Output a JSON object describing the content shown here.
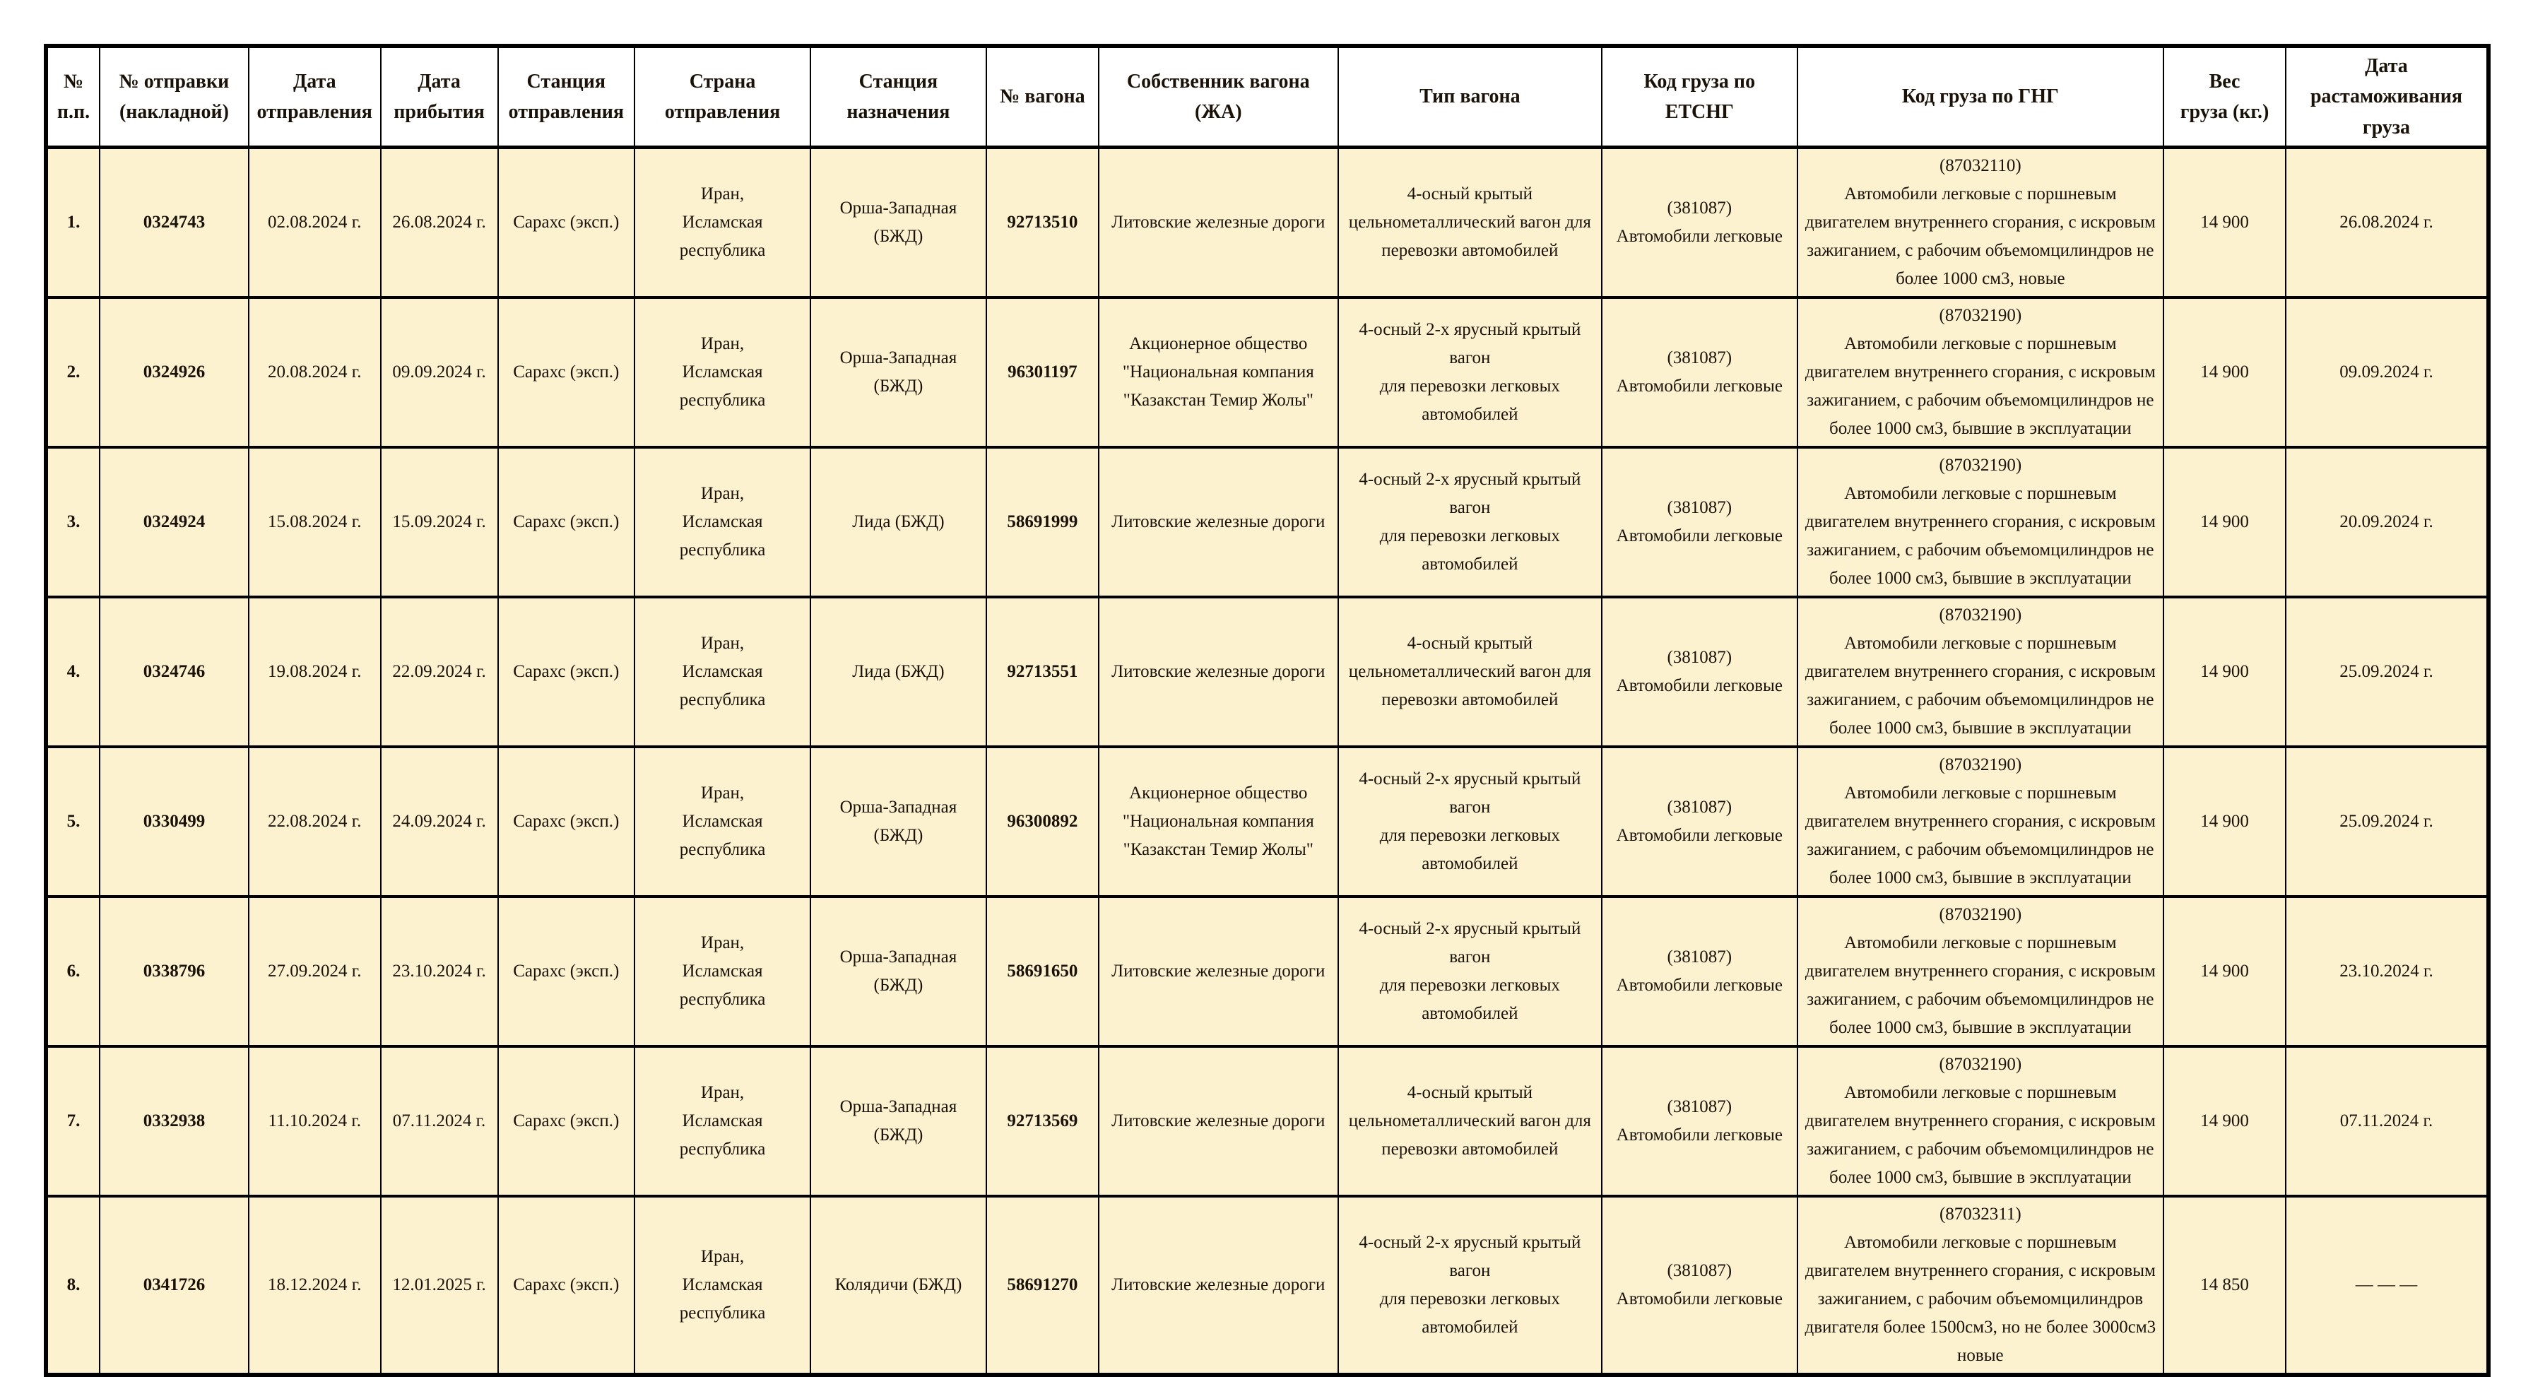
{
  "colors": {
    "cell_bg": "#FCF2CF",
    "header_bg": "#FFFFFF",
    "border": "#000000",
    "text": "#1A1208",
    "page_bg": "#FFFFFF"
  },
  "table": {
    "headers": [
      "№\nп.п.",
      "№ отправки\n(накладной)",
      "Дата\nотправления",
      "Дата\nприбытия",
      "Станция\nотправления",
      "Страна\nотправления",
      "Станция\nназначения",
      "№ вагона",
      "Собственник вагона\n(ЖА)",
      "Тип вагона",
      "Код груза по\nЕТСНГ",
      "Код груза по ГНГ",
      "Вес\nгруза (кг.)",
      "Дата\nрастаможивания\nгруза"
    ],
    "rows": [
      {
        "cells": [
          "1.",
          "0324743",
          "02.08.2024 г.",
          "26.08.2024 г.",
          "Сарахс (эксп.)",
          "Иран,\nИсламская\nреспублика",
          "Орша-Западная (БЖД)",
          "92713510",
          "Литовские железные дороги",
          "4-осный крытый\nцельнометаллический вагон для\nперевозки автомобилей",
          "(381087)\nАвтомобили легковые",
          "(87032110)\nАвтомобили легковые с поршневым двигателем внутреннего сгорания, с искровым зажиганием, с рабочим объемомцилиндров не более 1000 см3, новые",
          "14 900",
          "26.08.2024 г."
        ]
      },
      {
        "cells": [
          "2.",
          "0324926",
          "20.08.2024 г.",
          "09.09.2024 г.",
          "Сарахс (эксп.)",
          "Иран,\nИсламская\nреспублика",
          "Орша-Западная (БЖД)",
          "96301197",
          "Акционерное общество\n\"Национальная компания\n\"Казакстан Темир Жолы\"",
          "4-осный 2-х ярусный крытый вагон\nдля перевозки легковых\nавтомобилей",
          "(381087)\nАвтомобили легковые",
          "(87032190)\nАвтомобили легковые с поршневым двигателем внутреннего сгорания, с искровым зажиганием, с рабочим объемомцилиндров не более 1000 см3, бывшие в эксплуатации",
          "14 900",
          "09.09.2024 г."
        ]
      },
      {
        "cells": [
          "3.",
          "0324924",
          "15.08.2024 г.",
          "15.09.2024 г.",
          "Сарахс (эксп.)",
          "Иран,\nИсламская\nреспублика",
          "Лида (БЖД)",
          "58691999",
          "Литовские железные дороги",
          "4-осный 2-х ярусный крытый вагон\nдля перевозки легковых\nавтомобилей",
          "(381087)\nАвтомобили легковые",
          "(87032190)\nАвтомобили легковые с поршневым двигателем внутреннего сгорания, с искровым зажиганием, с рабочим объемомцилиндров не более 1000 см3, бывшие в эксплуатации",
          "14 900",
          "20.09.2024 г."
        ]
      },
      {
        "cells": [
          "4.",
          "0324746",
          "19.08.2024 г.",
          "22.09.2024 г.",
          "Сарахс (эксп.)",
          "Иран,\nИсламская\nреспублика",
          "Лида (БЖД)",
          "92713551",
          "Литовские железные дороги",
          "4-осный крытый\nцельнометаллический вагон для\nперевозки автомобилей",
          "(381087)\nАвтомобили легковые",
          "(87032190)\nАвтомобили легковые с поршневым двигателем внутреннего сгорания, с искровым зажиганием, с рабочим объемомцилиндров не более 1000 см3, бывшие в эксплуатации",
          "14 900",
          "25.09.2024 г."
        ]
      },
      {
        "cells": [
          "5.",
          "0330499",
          "22.08.2024 г.",
          "24.09.2024 г.",
          "Сарахс (эксп.)",
          "Иран,\nИсламская\nреспублика",
          "Орша-Западная (БЖД)",
          "96300892",
          "Акционерное общество\n\"Национальная компания\n\"Казакстан Темир Жолы\"",
          "4-осный 2-х ярусный крытый вагон\nдля перевозки легковых\nавтомобилей",
          "(381087)\nАвтомобили легковые",
          "(87032190)\nАвтомобили легковые с поршневым двигателем внутреннего сгорания, с искровым зажиганием, с рабочим объемомцилиндров не более 1000 см3, бывшие в эксплуатации",
          "14 900",
          "25.09.2024 г."
        ]
      },
      {
        "cells": [
          "6.",
          "0338796",
          "27.09.2024 г.",
          "23.10.2024 г.",
          "Сарахс (эксп.)",
          "Иран,\nИсламская\nреспублика",
          "Орша-Западная (БЖД)",
          "58691650",
          "Литовские железные дороги",
          "4-осный 2-х ярусный крытый вагон\nдля перевозки легковых\nавтомобилей",
          "(381087)\nАвтомобили легковые",
          "(87032190)\nАвтомобили легковые с поршневым двигателем внутреннего сгорания, с искровым зажиганием, с рабочим объемомцилиндров не более 1000 см3, бывшие в эксплуатации",
          "14 900",
          "23.10.2024 г."
        ]
      },
      {
        "cells": [
          "7.",
          "0332938",
          "11.10.2024 г.",
          "07.11.2024 г.",
          "Сарахс (эксп.)",
          "Иран,\nИсламская\nреспублика",
          "Орша-Западная (БЖД)",
          "92713569",
          "Литовские железные дороги",
          "4-осный крытый\nцельнометаллический вагон для\nперевозки автомобилей",
          "(381087)\nАвтомобили легковые",
          "(87032190)\nАвтомобили легковые с поршневым двигателем внутреннего сгорания, с искровым зажиганием, с рабочим объемомцилиндров не более 1000 см3, бывшие в эксплуатации",
          "14 900",
          "07.11.2024 г."
        ]
      },
      {
        "cells": [
          "8.",
          "0341726",
          "18.12.2024 г.",
          "12.01.2025 г.",
          "Сарахс (эксп.)",
          "Иран,\nИсламская\nреспублика",
          "Колядичи (БЖД)",
          "58691270",
          "Литовские железные дороги",
          "4-осный 2-х ярусный крытый вагон\nдля перевозки легковых\nавтомобилей",
          "(381087)\nАвтомобили легковые",
          "(87032311)\nАвтомобили легковые с поршневым двигателем внутреннего сгорания, с искровым зажиганием, с рабочим объемомцилиндров двигателя более 1500см3, но не более 3000см3 новые",
          "14 850",
          "— — —"
        ]
      }
    ]
  }
}
